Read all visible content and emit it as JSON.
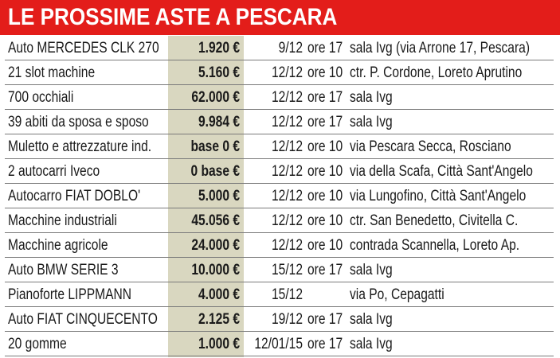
{
  "header": {
    "title": "LE PROSSIME ASTE A PESCARA"
  },
  "colors": {
    "header_bg": "#e31d1a",
    "price_band": "#d9d7c0",
    "text": "#1a1a1a"
  },
  "table": {
    "rows": [
      {
        "item": "Auto MERCEDES CLK 270",
        "price": "1.920 €",
        "date": "9/12",
        "time": "ore 17",
        "place": "sala Ivg (via Arrone 17, Pescara)"
      },
      {
        "item": "21 slot machine",
        "price": "5.160 €",
        "date": "12/12",
        "time": "ore 10",
        "place": "ctr. P. Cordone, Loreto Aprutino"
      },
      {
        "item": "700 occhiali",
        "price": "62.000 €",
        "date": "12/12",
        "time": "ore 17",
        "place": "sala Ivg"
      },
      {
        "item": "39 abiti da sposa e sposo",
        "price": "9.984 €",
        "date": "12/12",
        "time": "ore 17",
        "place": "sala Ivg"
      },
      {
        "item": "Muletto e attrezzature ind.",
        "price": "base 0 €",
        "date": "12/12",
        "time": "ore 10",
        "place": "via Pescara Secca, Rosciano"
      },
      {
        "item": "2 autocarri Iveco",
        "price": "0 base €",
        "date": "12/12",
        "time": "ore 10",
        "place": "via della Scafa, Città Sant'Angelo"
      },
      {
        "item": "Autocarro FIAT DOBLO'",
        "price": "5.000 €",
        "date": "12/12",
        "time": "ore 10",
        "place": "via Lungofino, Città Sant'Angelo"
      },
      {
        "item": "Macchine industriali",
        "price": "45.056 €",
        "date": "12/12",
        "time": "ore 10",
        "place": "ctr. San Benedetto, Civitella C."
      },
      {
        "item": "Macchine agricole",
        "price": "24.000 €",
        "date": "12/12",
        "time": "ore 10",
        "place": "contrada Scannella, Loreto Ap."
      },
      {
        "item": "Auto BMW SERIE 3",
        "price": "10.000 €",
        "date": "15/12",
        "time": "ore 17",
        "place": "sala Ivg"
      },
      {
        "item": "Pianoforte LIPPMANN",
        "price": "4.000 €",
        "date": "15/12",
        "time": "",
        "place": "via Po, Cepagatti"
      },
      {
        "item": "Auto FIAT CINQUECENTO",
        "price": "2.125 €",
        "date": "19/12",
        "time": "ore 17",
        "place": "sala Ivg"
      },
      {
        "item": "20 gomme",
        "price": "1.000 €",
        "date": "12/01/15",
        "time": "ore 17",
        "place": "sala Ivg"
      }
    ]
  }
}
